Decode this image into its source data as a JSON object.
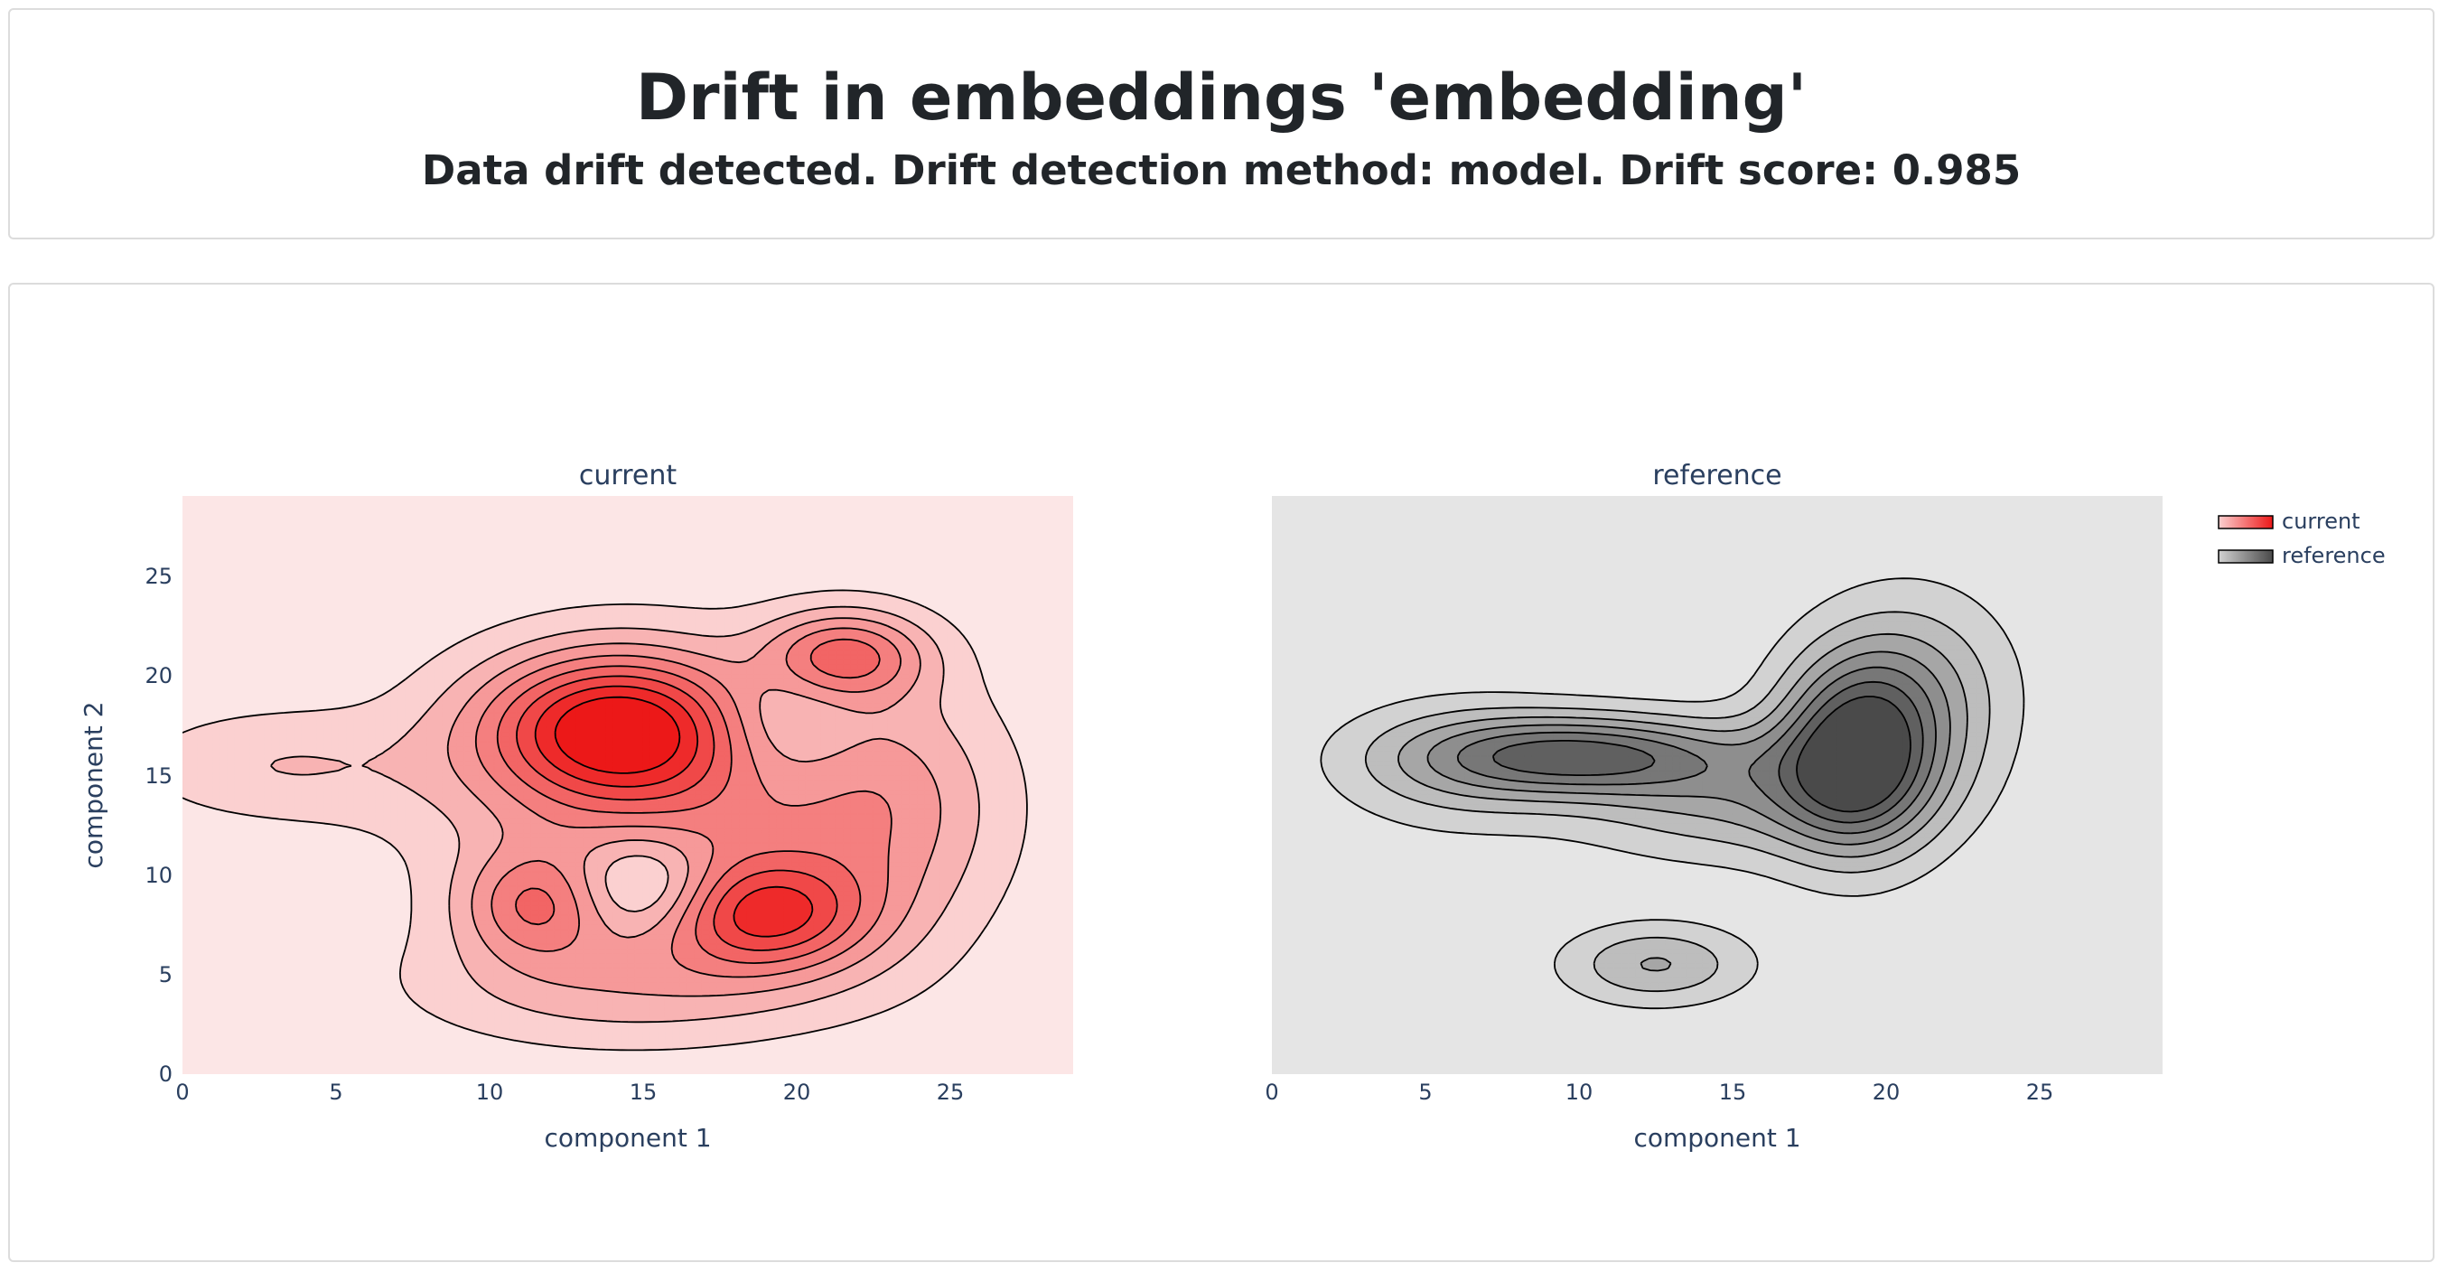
{
  "header": {
    "title": "Drift in embeddings 'embedding'",
    "subtitle": "Data drift detected. Drift detection method: model. Drift score: 0.985"
  },
  "colors": {
    "current_bg": "#fce6e6",
    "reference_bg": "#e5e5e5",
    "current_levels": [
      "#fbd0d0",
      "#f8b3b3",
      "#f69999",
      "#f47f7f",
      "#f26565",
      "#f04848",
      "#ee2a2a",
      "#ec1818"
    ],
    "reference_levels": [
      "#d2d2d2",
      "#bdbdbd",
      "#a6a6a6",
      "#8e8e8e",
      "#777777",
      "#606060",
      "#4a4a4a"
    ],
    "axis_text": "#2a3f5f"
  },
  "chart_data": [
    {
      "type": "contour",
      "title": "current",
      "xlabel": "component 1",
      "ylabel": "component 2",
      "xlim": [
        0,
        29
      ],
      "ylim": [
        0,
        29
      ],
      "xticks": [
        "0",
        "5",
        "10",
        "15",
        "20",
        "25"
      ],
      "yticks": [
        "0",
        "5",
        "10",
        "15",
        "20",
        "25"
      ],
      "density_peaks": [
        {
          "x": 14,
          "y": 17.5
        },
        {
          "x": 21.5,
          "y": 21
        },
        {
          "x": 19,
          "y": 8
        },
        {
          "x": 11.5,
          "y": 8.5
        },
        {
          "x": 3,
          "y": 15.5
        }
      ],
      "density_lows": [
        {
          "x": 15,
          "y": 9.5
        },
        {
          "x": 19.5,
          "y": 17.5
        }
      ]
    },
    {
      "type": "contour",
      "title": "reference",
      "xlabel": "component 1",
      "ylabel": "",
      "xlim": [
        0,
        29
      ],
      "ylim": [
        0,
        29
      ],
      "xticks": [
        "0",
        "5",
        "10",
        "15",
        "20",
        "25"
      ],
      "yticks": [],
      "density_peaks": [
        {
          "x": 19,
          "y": 16
        },
        {
          "x": 10,
          "y": 16
        },
        {
          "x": 12.5,
          "y": 5.5
        }
      ]
    }
  ],
  "legend": {
    "position": "top-right",
    "items": [
      {
        "label": "current",
        "color": "#ec1818"
      },
      {
        "label": "reference",
        "color": "#4a4a4a"
      }
    ]
  }
}
